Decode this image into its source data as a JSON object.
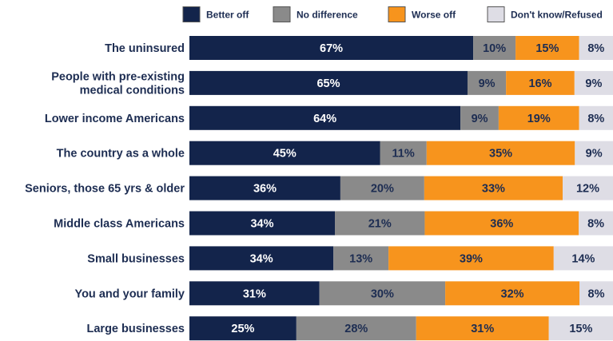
{
  "chart_data": {
    "type": "bar",
    "orientation": "horizontal",
    "stacked": true,
    "grid": false,
    "legend_position": "top",
    "categories": [
      [
        "The uninsured"
      ],
      [
        "People with pre-existing",
        "medical conditions"
      ],
      [
        "Lower income Americans"
      ],
      [
        "The country as a whole"
      ],
      [
        "Seniors, those 65 yrs & older"
      ],
      [
        "Middle class Americans"
      ],
      [
        "Small businesses"
      ],
      [
        "You and your family"
      ],
      [
        "Large businesses"
      ]
    ],
    "series": [
      {
        "name": "Better off",
        "color": "#13244b",
        "text_color": "#ffffff",
        "values": [
          67,
          65,
          64,
          45,
          36,
          34,
          34,
          31,
          25
        ]
      },
      {
        "name": "No difference",
        "color": "#8a8a8a",
        "text_color": "#1d2d52",
        "values": [
          10,
          9,
          9,
          11,
          20,
          21,
          13,
          30,
          28
        ]
      },
      {
        "name": "Worse off",
        "color": "#f7941d",
        "text_color": "#1d2d52",
        "values": [
          15,
          16,
          19,
          35,
          33,
          36,
          39,
          32,
          31
        ]
      },
      {
        "name": "Don't know/Refused",
        "color": "#dedde5",
        "text_color": "#1d2d52",
        "values": [
          8,
          9,
          8,
          9,
          12,
          8,
          14,
          8,
          15
        ]
      }
    ],
    "value_suffix": "%",
    "title": "",
    "xlabel": "",
    "ylabel": ""
  }
}
